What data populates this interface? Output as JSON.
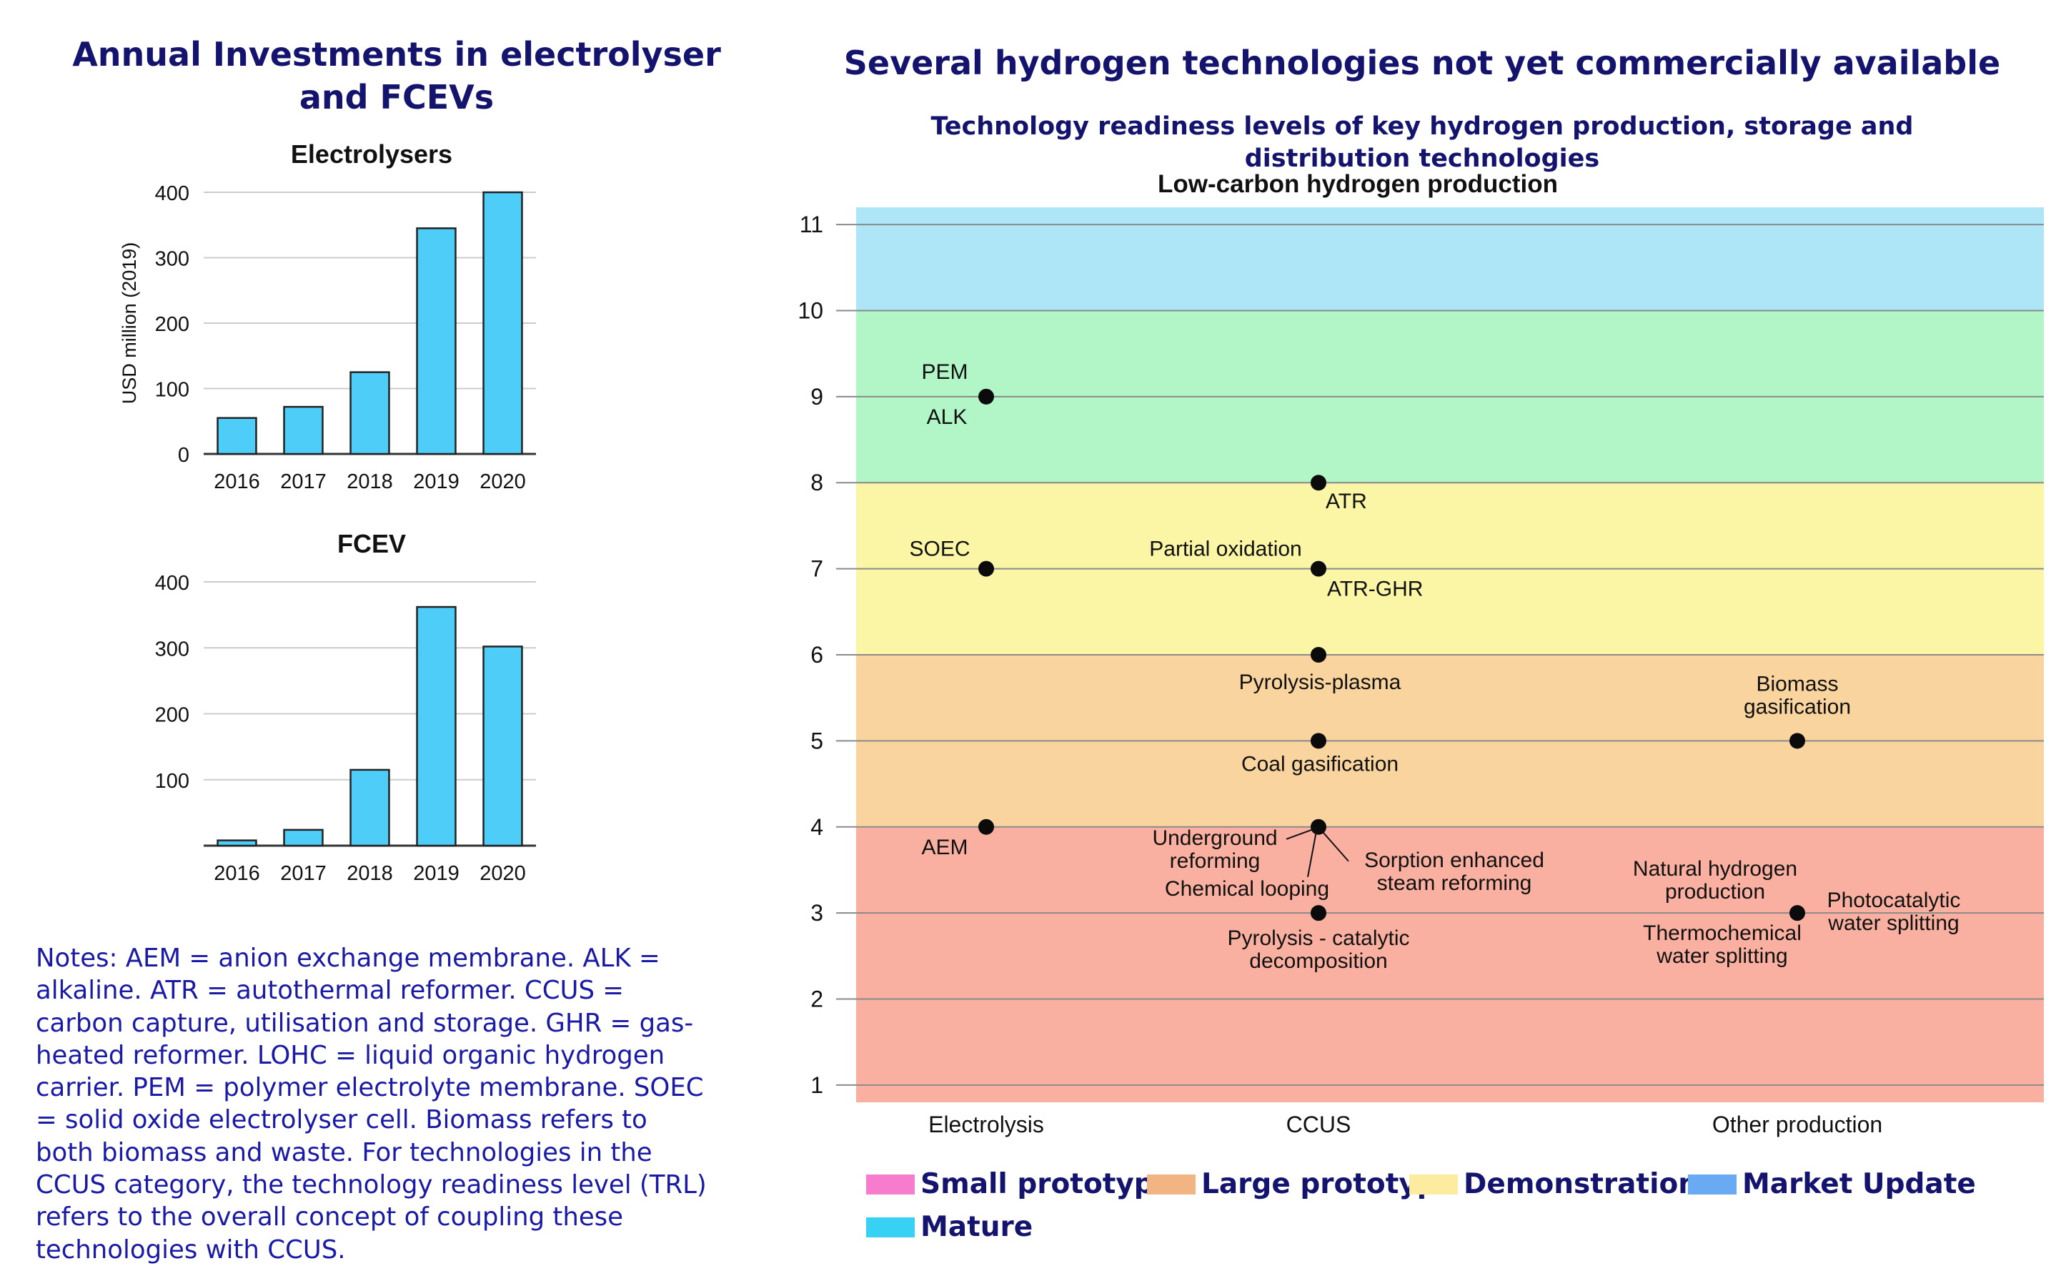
{
  "titles": {
    "left": "Annual Investments in electrolyser and FCEVs",
    "right": "Several hydrogen technologies not yet commercially available",
    "right_subtitle": "Technology readiness levels of key hydrogen production, storage and distribution technologies"
  },
  "notes": "Notes: AEM = anion exchange membrane. ALK = alkaline. ATR = autothermal reformer. CCUS = carbon capture, utilisation and storage. GHR = gas-heated reformer. LOHC = liquid organic hydrogen carrier. PEM = polymer electrolyte membrane. SOEC = solid oxide electrolyser cell. Biomass refers to both biomass and waste. For technologies in the CCUS category, the technology readiness level (TRL) refers to the overall concept of coupling these technologies with CCUS.",
  "colors": {
    "bar": "#4dcdf7",
    "navy": "#14146e",
    "band_mature": "#aee6f8",
    "band_market": "#b2f5c6",
    "band_demonstration": "#fbf5a6",
    "band_large": "#f9d49e",
    "band_small": "#fab0a0"
  },
  "chart_data": [
    {
      "type": "bar",
      "title": "Electrolysers",
      "ylabel": "USD million (2019)",
      "categories": [
        "2016",
        "2017",
        "2018",
        "2019",
        "2020"
      ],
      "values": [
        55,
        72,
        125,
        345,
        400
      ],
      "ylim": [
        0,
        400
      ],
      "yticks": [
        "0",
        "100",
        "200",
        "300",
        "400"
      ]
    },
    {
      "type": "bar",
      "title": "FCEV",
      "categories": [
        "2016",
        "2017",
        "2018",
        "2019",
        "2020"
      ],
      "values": [
        8,
        24,
        115,
        362,
        302
      ],
      "ylim": [
        0,
        400
      ],
      "yticks": [
        "100",
        "200",
        "300",
        "400"
      ]
    },
    {
      "type": "scatter",
      "title": "Low-carbon hydrogen production",
      "ylim": [
        0.8,
        11.2
      ],
      "yticks": [
        "1",
        "2",
        "3",
        "4",
        "5",
        "6",
        "7",
        "8",
        "9",
        "10",
        "11"
      ],
      "categories": [
        "Electrolysis",
        "CCUS",
        "Other production"
      ],
      "bands": [
        {
          "from": 10,
          "to": 11.2,
          "name": "Mature"
        },
        {
          "from": 8,
          "to": 10,
          "name": "Market Update"
        },
        {
          "from": 6,
          "to": 8,
          "name": "Demonstration"
        },
        {
          "from": 4,
          "to": 6,
          "name": "Large prototype"
        },
        {
          "from": 0.8,
          "to": 4,
          "name": "Small prototype"
        }
      ],
      "points": [
        {
          "category": "Electrolysis",
          "trl": 9,
          "labels": [
            "PEM",
            "ALK"
          ]
        },
        {
          "category": "Electrolysis",
          "trl": 7,
          "labels": [
            "SOEC"
          ]
        },
        {
          "category": "Electrolysis",
          "trl": 4,
          "labels": [
            "AEM"
          ]
        },
        {
          "category": "CCUS",
          "trl": 8,
          "labels": [
            "ATR"
          ]
        },
        {
          "category": "CCUS",
          "trl": 7,
          "labels": [
            "Partial oxidation",
            "ATR-GHR"
          ]
        },
        {
          "category": "CCUS",
          "trl": 6,
          "labels": [
            "Pyrolysis-plasma"
          ]
        },
        {
          "category": "CCUS",
          "trl": 5,
          "labels": [
            "Coal gasification"
          ]
        },
        {
          "category": "CCUS",
          "trl": 4,
          "labels": [
            "Underground reforming",
            "Chemical looping",
            "Sorption enhanced steam reforming"
          ]
        },
        {
          "category": "CCUS",
          "trl": 3,
          "labels": [
            "Pyrolysis - catalytic decomposition"
          ]
        },
        {
          "category": "Other production",
          "trl": 5,
          "labels": [
            "Biomass gasification"
          ]
        },
        {
          "category": "Other production",
          "trl": 3,
          "labels": [
            "Natural hydrogen production",
            "Thermochemical water splitting",
            "Photocatalytic water splitting"
          ]
        }
      ]
    }
  ],
  "legend": [
    {
      "label": "Small prototype",
      "color": "#f77ccd"
    },
    {
      "label": "Large prototyp",
      "color": "#f2b483"
    },
    {
      "label": "Demonstration",
      "color": "#fdeba0"
    },
    {
      "label": "Market Update",
      "color": "#6aaaf2"
    },
    {
      "label": "Mature",
      "color": "#37d1f4"
    }
  ]
}
